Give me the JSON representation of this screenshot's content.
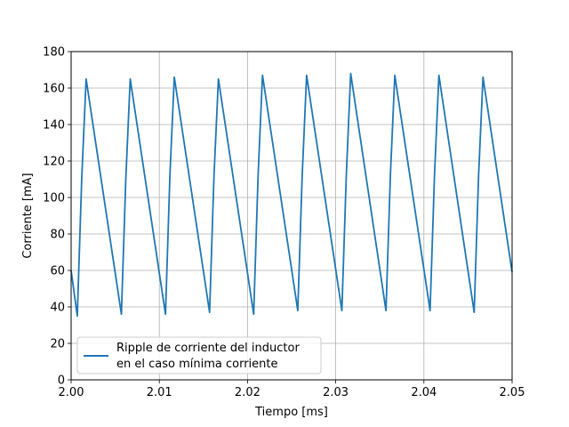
{
  "chart_data": {
    "type": "line",
    "xlabel": "Tiempo [ms]",
    "ylabel": "Corriente [mA]",
    "xlim": [
      2.0,
      2.05
    ],
    "ylim": [
      0,
      180
    ],
    "xticks": [
      2.0,
      2.01,
      2.02,
      2.03,
      2.04,
      2.05
    ],
    "xtick_labels": [
      "2.00",
      "2.01",
      "2.02",
      "2.03",
      "2.04",
      "2.05"
    ],
    "yticks": [
      0,
      20,
      40,
      60,
      80,
      100,
      120,
      140,
      160,
      180
    ],
    "ytick_labels": [
      "0",
      "20",
      "40",
      "60",
      "80",
      "100",
      "120",
      "140",
      "160",
      "180"
    ],
    "grid": true,
    "legend_position": "bottom-left",
    "series": [
      {
        "name": "Ripple de corriente del inductor\nen el caso mínima corriente",
        "legend_lines": [
          "Ripple de corriente del inductor",
          "en el caso mínima corriente"
        ],
        "color": "#1f77b4",
        "x": [
          2.0,
          2.0007,
          2.0012,
          2.0017,
          2.0057,
          2.0062,
          2.0067,
          2.0107,
          2.0112,
          2.0117,
          2.0157,
          2.0162,
          2.0167,
          2.0207,
          2.0212,
          2.0217,
          2.0257,
          2.0262,
          2.0267,
          2.0307,
          2.0312,
          2.0317,
          2.0357,
          2.0362,
          2.0367,
          2.0407,
          2.0412,
          2.0417,
          2.0457,
          2.0462,
          2.0467,
          2.05
        ],
        "y": [
          60,
          35,
          110,
          165,
          36,
          110,
          165,
          36,
          112,
          166,
          37,
          112,
          165,
          36,
          112,
          167,
          38,
          112,
          167,
          38,
          112,
          168,
          38,
          112,
          167,
          38,
          112,
          167,
          37,
          112,
          166,
          59
        ]
      }
    ]
  }
}
